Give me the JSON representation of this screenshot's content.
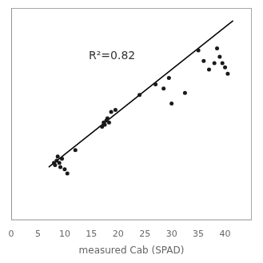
{
  "chart_data": {
    "type": "scatter",
    "xlabel": "measured Cab (SPAD)",
    "series": [
      {
        "type": "scatter",
        "color": "#1a1a1a",
        "x": [
          8,
          8.2,
          8.5,
          8.7,
          9.0,
          9.2,
          9.5,
          10.0,
          10.5,
          12.0,
          17.0,
          17.3,
          17.5,
          17.8,
          18.0,
          18.3,
          18.7,
          19.5,
          24.0,
          27.0,
          28.5,
          29.5,
          30.0,
          32.5,
          35.0,
          36.0,
          37.0,
          38.0,
          38.5,
          39.0,
          39.5,
          40.0,
          40.5
        ],
        "values": [
          13.5,
          13.0,
          14.0,
          15.0,
          13.5,
          12.5,
          14.5,
          12.0,
          11.0,
          16.5,
          22.0,
          23.0,
          22.5,
          23.5,
          24.0,
          23.0,
          25.5,
          26.0,
          29.5,
          32.0,
          31.0,
          33.5,
          27.5,
          30.0,
          40.0,
          37.5,
          35.5,
          37.0,
          40.5,
          38.5,
          37.0,
          36.0,
          34.5
        ]
      },
      {
        "type": "line",
        "color": "#000000",
        "x": [
          7.0,
          41.5
        ],
        "values": [
          12.5,
          47.0
        ]
      }
    ],
    "annotations": [
      {
        "text": "R²=0.82",
        "x": 14.5,
        "y": 38.0
      }
    ],
    "xlim": [
      0,
      45
    ],
    "ylim": [
      0,
      50
    ],
    "xticks": [
      0,
      5,
      10,
      15,
      20,
      25,
      30,
      35,
      40
    ],
    "grid": false,
    "tick_labels": "x"
  }
}
